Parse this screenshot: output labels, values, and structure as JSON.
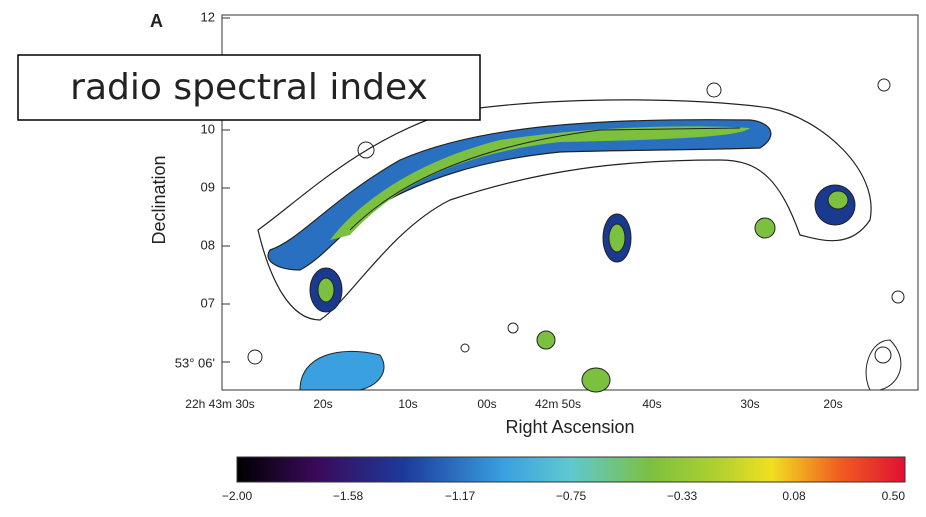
{
  "figure": {
    "panel_label": "A",
    "overlay_label": "radio spectral index",
    "y_axis_label": "Declination",
    "x_axis_label": "Right Ascension",
    "y_ticks": [
      "12",
      "10",
      "09",
      "08",
      "07",
      "53° 06'"
    ],
    "x_ticks": [
      "22h 43m 30s",
      "20s",
      "10s",
      "00s",
      "42m 50s",
      "40s",
      "30s",
      "20s"
    ],
    "colorbar_ticks": [
      "−2.00",
      "−1.58",
      "−1.17",
      "−0.75",
      "−0.33",
      "0.08",
      "0.50"
    ]
  }
}
